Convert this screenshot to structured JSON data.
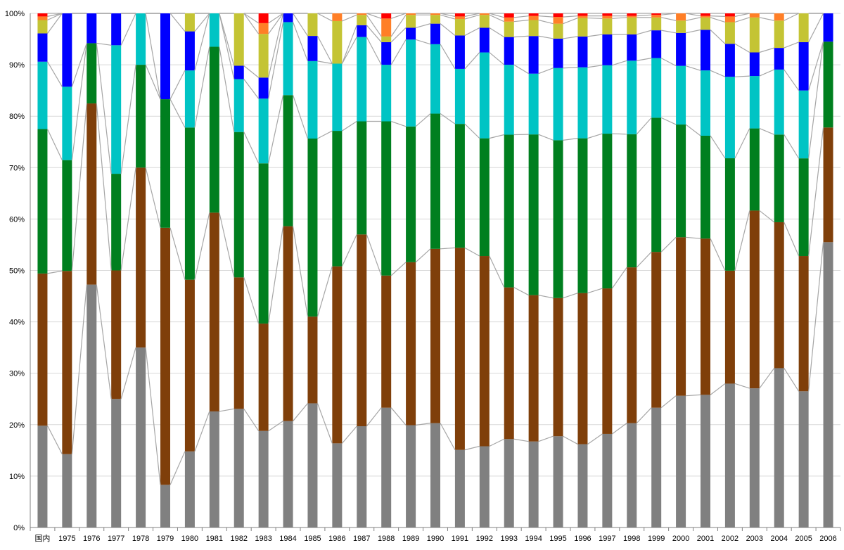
{
  "chart_data": {
    "type": "bar",
    "stacked": true,
    "percent": true,
    "categories": [
      "国内",
      "1975",
      "1976",
      "1977",
      "1978",
      "1979",
      "1980",
      "1981",
      "1982",
      "1983",
      "1984",
      "1985",
      "1986",
      "1987",
      "1988",
      "1989",
      "1990",
      "1991",
      "1992",
      "1993",
      "1994",
      "1995",
      "1996",
      "1997",
      "1998",
      "1999",
      "2000",
      "2001",
      "2002",
      "2003",
      "2004",
      "2005",
      "2006"
    ],
    "y_ticks": [
      "0%",
      "10%",
      "20%",
      "30%",
      "40%",
      "50%",
      "60%",
      "70%",
      "80%",
      "90%",
      "100%"
    ],
    "ylim": [
      0,
      100
    ],
    "grid": true,
    "legend": "none",
    "connector_lines": true,
    "series": [
      {
        "color": "#808080",
        "values": [
          19.8,
          14.3,
          47.2,
          25.0,
          35.0,
          8.3,
          14.8,
          22.6,
          23.1,
          18.8,
          20.7,
          24.2,
          16.4,
          19.7,
          23.3,
          19.9,
          20.3,
          15.1,
          15.8,
          17.2,
          16.7,
          17.7,
          16.2,
          18.2,
          20.3,
          23.3,
          25.6,
          25.8,
          27.9,
          27.1,
          30.9,
          26.5,
          55.5
        ]
      },
      {
        "color": "#7f3f0a",
        "values": [
          29.6,
          35.7,
          35.2,
          25.0,
          35.0,
          50.0,
          33.4,
          38.7,
          25.6,
          20.9,
          37.9,
          16.9,
          34.5,
          37.3,
          25.7,
          31.7,
          33.9,
          39.3,
          37.0,
          29.5,
          28.4,
          26.8,
          29.4,
          28.3,
          30.3,
          30.3,
          30.8,
          30.4,
          21.9,
          34.6,
          28.3,
          26.3,
          22.3
        ]
      },
      {
        "color": "#007f1f",
        "values": [
          28.1,
          21.6,
          11.7,
          18.8,
          20.0,
          25.0,
          29.6,
          32.3,
          28.3,
          31.2,
          25.5,
          34.7,
          26.4,
          22.0,
          30.0,
          26.4,
          26.3,
          24.1,
          22.9,
          29.7,
          31.2,
          30.6,
          30.1,
          30.1,
          25.9,
          26.1,
          21.9,
          20.0,
          21.8,
          16.0,
          17.0,
          19.0,
          16.7
        ]
      },
      {
        "color": "#00c4c4",
        "values": [
          13.1,
          14.3,
          0.0,
          25.0,
          10.0,
          0.0,
          11.1,
          6.5,
          10.3,
          12.6,
          14.2,
          15.1,
          13.1,
          16.4,
          11.0,
          16.9,
          13.5,
          10.7,
          16.7,
          13.6,
          11.8,
          14.0,
          13.8,
          13.3,
          14.3,
          11.6,
          11.4,
          12.7,
          15.8,
          10.2,
          12.6,
          13.2,
          0.0
        ]
      },
      {
        "color": "#0000ff",
        "values": [
          5.5,
          14.3,
          5.8,
          6.2,
          0.0,
          16.7,
          7.6,
          0.0,
          2.6,
          4.1,
          1.7,
          4.9,
          0.0,
          2.3,
          4.4,
          2.3,
          4.0,
          6.5,
          4.8,
          5.4,
          7.3,
          5.7,
          6.0,
          6.0,
          5.1,
          5.4,
          6.4,
          7.9,
          6.4,
          4.6,
          4.2,
          9.4,
          5.5
        ]
      },
      {
        "color": "#c4c434",
        "values": [
          2.6,
          0.0,
          0.0,
          0.0,
          0.0,
          0.0,
          3.5,
          0.0,
          10.2,
          8.5,
          0.0,
          4.4,
          8.3,
          2.0,
          1.1,
          2.5,
          1.7,
          3.2,
          2.5,
          3.0,
          3.1,
          2.9,
          3.6,
          3.1,
          3.3,
          2.5,
          2.4,
          2.4,
          4.2,
          6.8,
          5.3,
          5.6,
          0.0
        ]
      },
      {
        "color": "#ff7f27",
        "values": [
          0.7,
          0.0,
          0.0,
          0.0,
          0.0,
          0.0,
          0.0,
          0.0,
          0.0,
          2.1,
          0.0,
          0.0,
          1.5,
          0.3,
          3.5,
          0.3,
          0.3,
          0.5,
          0.3,
          0.8,
          0.8,
          1.3,
          0.4,
          0.5,
          0.3,
          0.5,
          1.4,
          0.3,
          1.1,
          0.8,
          1.4,
          0.0,
          0.0
        ]
      },
      {
        "color": "#ff0000",
        "values": [
          0.6,
          0.0,
          0.0,
          0.0,
          0.0,
          0.0,
          0.0,
          0.0,
          0.0,
          1.9,
          0.0,
          0.0,
          0.0,
          0.0,
          1.0,
          0.0,
          0.0,
          0.6,
          0.0,
          0.8,
          0.5,
          0.7,
          0.5,
          0.5,
          0.5,
          0.3,
          0.0,
          0.5,
          0.6,
          0.0,
          0.0,
          0.0,
          0.0
        ]
      }
    ]
  }
}
